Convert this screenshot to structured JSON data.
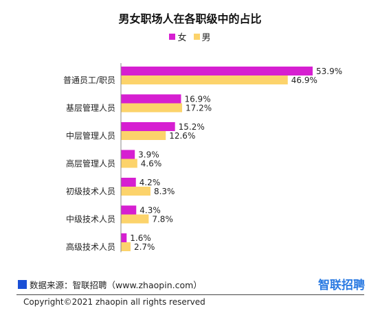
{
  "chart_data": {
    "type": "bar",
    "orientation": "horizontal",
    "title": "男女职场人在各职级中的占比",
    "categories": [
      "普通员工/职员",
      "基层管理人员",
      "中层管理人员",
      "高层管理人员",
      "初级技术人员",
      "中级技术人员",
      "高级技术人员"
    ],
    "series": [
      {
        "name": "女",
        "color": "#d61fd1",
        "values": [
          53.9,
          16.9,
          15.2,
          3.9,
          4.2,
          4.3,
          1.6
        ],
        "labels": [
          "53.9%",
          "16.9%",
          "15.2%",
          "3.9%",
          "4.2%",
          "4.3%",
          "1.6%"
        ]
      },
      {
        "name": "男",
        "color": "#fcd36b",
        "values": [
          46.9,
          17.2,
          12.6,
          4.6,
          8.3,
          7.8,
          2.7
        ],
        "labels": [
          "46.9%",
          "17.2%",
          "12.6%",
          "4.6%",
          "8.3%",
          "7.8%",
          "2.7%"
        ]
      }
    ],
    "xlim": [
      0,
      60
    ],
    "grid": false,
    "legend_position": "top-center"
  },
  "footer": {
    "source": "数据来源：智联招聘（www.zhaopin.com）",
    "brand": "智联招聘",
    "copyright": "Copyright©2021 zhaopin all rights reserved"
  }
}
